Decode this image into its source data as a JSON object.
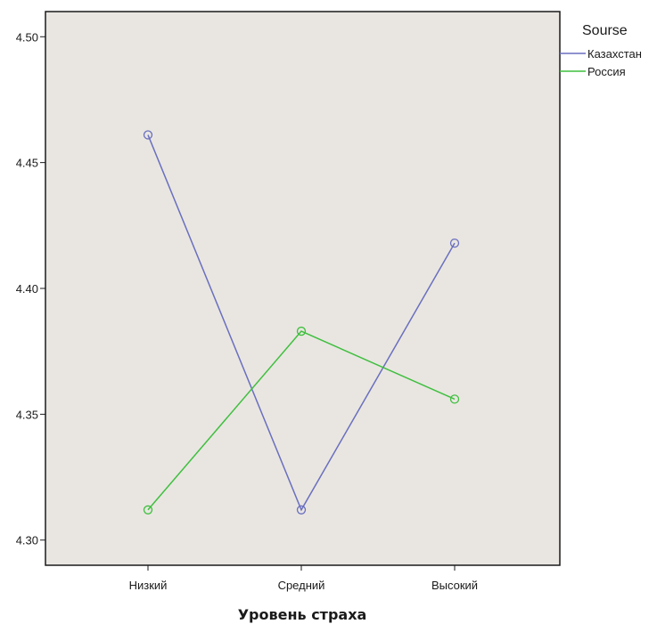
{
  "chart_data": {
    "type": "line",
    "title": "",
    "xlabel": "Уровень страха",
    "ylabel": "",
    "categories": [
      "Низкий",
      "Средний",
      "Высокий"
    ],
    "ylim": [
      4.29,
      4.51
    ],
    "yticks": [
      4.3,
      4.35,
      4.4,
      4.45,
      4.5
    ],
    "ytick_labels": [
      "4.30",
      "4.35",
      "4.40",
      "4.45",
      "4.50"
    ],
    "grid": false,
    "legend": {
      "title": "Sourse",
      "placement": "right"
    },
    "series": [
      {
        "name": "Казахстан",
        "values": [
          4.461,
          4.312,
          4.418
        ],
        "color": "#6a6fbf"
      },
      {
        "name": "Россия",
        "values": [
          4.312,
          4.383,
          4.356
        ],
        "color": "#3fbf3f"
      }
    ],
    "plot_background": "#e9e6e1"
  }
}
